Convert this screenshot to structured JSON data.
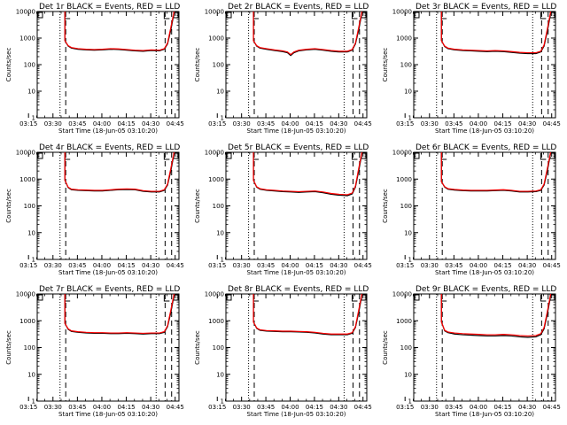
{
  "figure": {
    "ylabel": "Counts/sec",
    "xlabel": "Start Time (18-Jun-05 03:10:20)",
    "x_tick_labels": [
      "03:15",
      "03:30",
      "03:45",
      "04:00",
      "04:15",
      "04:30",
      "04:45"
    ],
    "y_tick_labels": [
      "1",
      "10",
      "100",
      "1000",
      "10000"
    ],
    "colors": {
      "events": "#000000",
      "lld": "#ff0000",
      "background": "#ffffff"
    }
  },
  "chart_data": [
    {
      "type": "line",
      "title": "Det 1r BLACK = Events, RED = LLD",
      "xlabel": "Start Time (18-Jun-05 03:10:20)",
      "ylabel": "Counts/sec",
      "yscale": "log",
      "ylim": [
        1,
        10000
      ],
      "xlim_minutes": [
        10,
        97
      ],
      "events_x": [
        27,
        29,
        31,
        35,
        40,
        45,
        50,
        55,
        60,
        65,
        70,
        75,
        80,
        85,
        88,
        90,
        92,
        94
      ],
      "events_y": [
        800,
        500,
        420,
        380,
        360,
        350,
        360,
        380,
        370,
        350,
        330,
        320,
        340,
        330,
        380,
        600,
        2000,
        9000
      ],
      "lld_x": [
        27,
        29,
        31,
        35,
        40,
        45,
        50,
        55,
        60,
        65,
        70,
        75,
        80,
        85,
        88,
        90,
        92,
        94
      ],
      "lld_y": [
        800,
        520,
        440,
        400,
        380,
        370,
        380,
        400,
        390,
        370,
        350,
        340,
        360,
        350,
        400,
        650,
        2500,
        10000
      ],
      "dotted_minutes": [
        24,
        83
      ],
      "dashed_minutes": [
        27.5,
        88.5,
        92.5
      ]
    },
    {
      "type": "line",
      "title": "Det 2r BLACK = Events, RED = LLD",
      "xlabel": "Start Time (18-Jun-05 03:10:20)",
      "ylabel": "Counts/sec",
      "yscale": "log",
      "ylim": [
        1,
        10000
      ],
      "xlim_minutes": [
        10,
        97
      ],
      "events_x": [
        27,
        29,
        31,
        35,
        40,
        45,
        48,
        50,
        52,
        55,
        60,
        65,
        70,
        75,
        80,
        85,
        88,
        90,
        92,
        94
      ],
      "events_y": [
        800,
        500,
        420,
        380,
        340,
        310,
        280,
        220,
        280,
        330,
        360,
        380,
        350,
        320,
        300,
        300,
        350,
        600,
        2000,
        9000
      ],
      "lld_x": [
        27,
        29,
        31,
        35,
        40,
        45,
        48,
        50,
        52,
        55,
        60,
        65,
        70,
        75,
        80,
        85,
        88,
        90,
        92,
        94
      ],
      "lld_y": [
        800,
        520,
        440,
        400,
        360,
        330,
        300,
        240,
        300,
        350,
        380,
        400,
        370,
        340,
        320,
        320,
        370,
        650,
        2500,
        10000
      ],
      "dotted_minutes": [
        24,
        83
      ],
      "dashed_minutes": [
        27.5,
        88.5,
        92.5
      ]
    },
    {
      "type": "line",
      "title": "Det 3r BLACK = Events, RED = LLD",
      "xlabel": "Start Time (18-Jun-05 03:10:20)",
      "ylabel": "Counts/sec",
      "yscale": "log",
      "ylim": [
        1,
        10000
      ],
      "xlim_minutes": [
        10,
        97
      ],
      "events_x": [
        27,
        29,
        31,
        35,
        40,
        45,
        50,
        55,
        60,
        65,
        70,
        75,
        80,
        85,
        88,
        90,
        92,
        94
      ],
      "events_y": [
        800,
        480,
        400,
        360,
        340,
        330,
        320,
        310,
        320,
        310,
        290,
        270,
        260,
        260,
        300,
        500,
        1800,
        8000
      ],
      "lld_x": [
        27,
        29,
        31,
        35,
        40,
        45,
        50,
        55,
        60,
        65,
        70,
        75,
        80,
        85,
        88,
        90,
        92,
        94
      ],
      "lld_y": [
        800,
        500,
        420,
        380,
        360,
        350,
        340,
        330,
        340,
        330,
        310,
        290,
        280,
        280,
        320,
        550,
        2200,
        9500
      ],
      "dotted_minutes": [
        24,
        83
      ],
      "dashed_minutes": [
        27.5,
        88.5,
        92.5
      ]
    },
    {
      "type": "line",
      "title": "Det 4r BLACK = Events, RED = LLD",
      "xlabel": "Start Time (18-Jun-05 03:10:20)",
      "ylabel": "Counts/sec",
      "yscale": "log",
      "ylim": [
        1,
        10000
      ],
      "xlim_minutes": [
        10,
        97
      ],
      "events_x": [
        27,
        29,
        31,
        35,
        40,
        45,
        50,
        55,
        60,
        65,
        70,
        75,
        80,
        85,
        88,
        90,
        92,
        94
      ],
      "events_y": [
        900,
        480,
        400,
        380,
        370,
        360,
        360,
        380,
        400,
        410,
        400,
        350,
        330,
        330,
        380,
        600,
        2000,
        9000
      ],
      "lld_x": [
        27,
        29,
        31,
        35,
        40,
        45,
        50,
        55,
        60,
        65,
        70,
        75,
        80,
        85,
        88,
        90,
        92,
        94
      ],
      "lld_y": [
        900,
        500,
        420,
        400,
        390,
        380,
        380,
        400,
        420,
        430,
        420,
        370,
        350,
        350,
        400,
        650,
        2500,
        10000
      ],
      "dotted_minutes": [
        24,
        83
      ],
      "dashed_minutes": [
        27.5,
        88.5,
        92.5
      ]
    },
    {
      "type": "line",
      "title": "Det 5r BLACK = Events, RED = LLD",
      "xlabel": "Start Time (18-Jun-05 03:10:20)",
      "ylabel": "Counts/sec",
      "yscale": "log",
      "ylim": [
        1,
        10000
      ],
      "xlim_minutes": [
        10,
        97
      ],
      "events_x": [
        27,
        29,
        31,
        35,
        40,
        45,
        50,
        55,
        60,
        65,
        70,
        75,
        80,
        85,
        88,
        90,
        92,
        94
      ],
      "events_y": [
        900,
        500,
        420,
        380,
        360,
        340,
        330,
        320,
        330,
        340,
        310,
        270,
        250,
        240,
        280,
        500,
        2000,
        9000
      ],
      "lld_x": [
        27,
        29,
        31,
        35,
        40,
        45,
        50,
        55,
        60,
        65,
        70,
        75,
        80,
        85,
        88,
        90,
        92,
        94
      ],
      "lld_y": [
        900,
        520,
        440,
        400,
        380,
        360,
        350,
        340,
        350,
        360,
        330,
        290,
        270,
        260,
        300,
        550,
        2500,
        10000
      ],
      "dotted_minutes": [
        24,
        83
      ],
      "dashed_minutes": [
        27.5,
        88.5,
        92.5
      ]
    },
    {
      "type": "line",
      "title": "Det 6r BLACK = Events, RED = LLD",
      "xlabel": "Start Time (18-Jun-05 03:10:20)",
      "ylabel": "Counts/sec",
      "yscale": "log",
      "ylim": [
        1,
        10000
      ],
      "xlim_minutes": [
        10,
        97
      ],
      "events_x": [
        27,
        29,
        31,
        35,
        40,
        45,
        50,
        55,
        60,
        65,
        70,
        75,
        80,
        85,
        88,
        90,
        92,
        94
      ],
      "events_y": [
        800,
        500,
        420,
        390,
        370,
        360,
        360,
        360,
        370,
        380,
        360,
        330,
        330,
        340,
        380,
        600,
        2000,
        9000
      ],
      "lld_x": [
        27,
        29,
        31,
        35,
        40,
        45,
        50,
        55,
        60,
        65,
        70,
        75,
        80,
        85,
        88,
        90,
        92,
        94
      ],
      "lld_y": [
        800,
        520,
        440,
        410,
        390,
        380,
        380,
        380,
        390,
        400,
        380,
        350,
        350,
        360,
        400,
        650,
        2500,
        10000
      ],
      "dotted_minutes": [
        24,
        83
      ],
      "dashed_minutes": [
        27.5,
        88.5,
        92.5
      ]
    },
    {
      "type": "line",
      "title": "Det 7r BLACK = Events, RED = LLD",
      "xlabel": "Start Time (18-Jun-05 03:10:20)",
      "ylabel": "Counts/sec",
      "yscale": "log",
      "ylim": [
        1,
        10000
      ],
      "xlim_minutes": [
        10,
        97
      ],
      "events_x": [
        27,
        29,
        31,
        35,
        40,
        45,
        50,
        55,
        60,
        65,
        70,
        75,
        80,
        85,
        88,
        90,
        92,
        94
      ],
      "events_y": [
        800,
        480,
        400,
        370,
        350,
        340,
        340,
        330,
        330,
        340,
        330,
        320,
        330,
        330,
        370,
        600,
        2000,
        9000
      ],
      "lld_x": [
        27,
        29,
        31,
        35,
        40,
        45,
        50,
        55,
        60,
        65,
        70,
        75,
        80,
        85,
        88,
        90,
        92,
        94
      ],
      "lld_y": [
        800,
        500,
        420,
        390,
        370,
        360,
        360,
        350,
        350,
        360,
        350,
        340,
        350,
        350,
        390,
        650,
        2500,
        10000
      ],
      "dotted_minutes": [
        24,
        83
      ],
      "dashed_minutes": [
        27.5,
        88.5,
        92.5
      ]
    },
    {
      "type": "line",
      "title": "Det 8r BLACK = Events, RED = LLD",
      "xlabel": "Start Time (18-Jun-05 03:10:20)",
      "ylabel": "Counts/sec",
      "yscale": "log",
      "ylim": [
        1,
        10000
      ],
      "xlim_minutes": [
        10,
        97
      ],
      "events_x": [
        27,
        29,
        31,
        35,
        40,
        45,
        50,
        55,
        60,
        65,
        70,
        75,
        80,
        85,
        88,
        90,
        92,
        94
      ],
      "events_y": [
        900,
        520,
        440,
        410,
        400,
        390,
        390,
        380,
        370,
        350,
        320,
        300,
        300,
        300,
        340,
        560,
        2000,
        9000
      ],
      "lld_x": [
        27,
        29,
        31,
        35,
        40,
        45,
        50,
        55,
        60,
        65,
        70,
        75,
        80,
        85,
        88,
        90,
        92,
        94
      ],
      "lld_y": [
        900,
        540,
        460,
        430,
        420,
        410,
        410,
        400,
        390,
        370,
        340,
        320,
        320,
        320,
        360,
        600,
        2500,
        10000
      ],
      "dotted_minutes": [
        24,
        83
      ],
      "dashed_minutes": [
        27.5,
        88.5,
        92.5
      ]
    },
    {
      "type": "line",
      "title": "Det 9r BLACK = Events, RED = LLD",
      "xlabel": "Start Time (18-Jun-05 03:10:20)",
      "ylabel": "Counts/sec",
      "yscale": "log",
      "ylim": [
        1,
        10000
      ],
      "xlim_minutes": [
        10,
        97
      ],
      "events_x": [
        27,
        29,
        31,
        35,
        40,
        45,
        50,
        55,
        60,
        65,
        70,
        75,
        80,
        85,
        88,
        90,
        92,
        94
      ],
      "events_y": [
        900,
        420,
        360,
        320,
        300,
        290,
        280,
        270,
        270,
        280,
        270,
        250,
        240,
        250,
        300,
        500,
        1800,
        8000
      ],
      "lld_x": [
        27,
        29,
        31,
        35,
        40,
        45,
        50,
        55,
        60,
        65,
        70,
        75,
        80,
        85,
        88,
        90,
        92,
        94
      ],
      "lld_y": [
        900,
        440,
        380,
        350,
        330,
        320,
        310,
        300,
        300,
        310,
        300,
        280,
        270,
        280,
        330,
        560,
        2200,
        9500
      ],
      "dotted_minutes": [
        24,
        83
      ],
      "dashed_minutes": [
        27.5,
        88.5,
        92.5
      ]
    }
  ]
}
